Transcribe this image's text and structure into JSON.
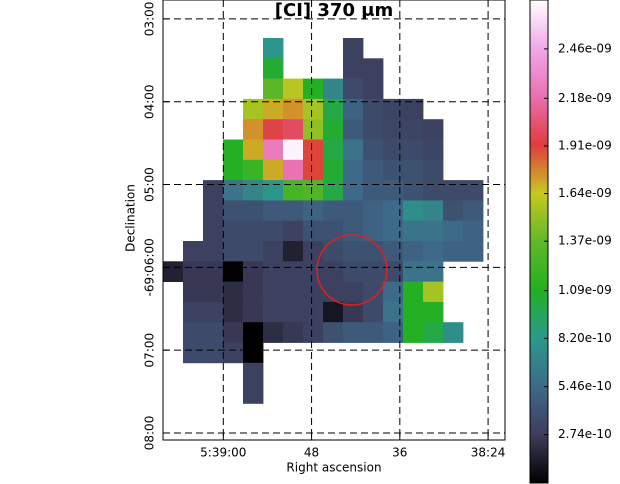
{
  "chart_data": {
    "type": "heatmap",
    "title": "[CI] 370 μm",
    "x_label": "Right ascension",
    "y_label": "Declination",
    "xlim": [
      19148.2,
      19101.7
    ],
    "xticks": [
      {
        "value": 19140,
        "label": "5:39:00"
      },
      {
        "value": 19128,
        "label": "48"
      },
      {
        "value": 19116,
        "label": "36"
      },
      {
        "value": 19104,
        "label": "38:24"
      }
    ],
    "ylim": [
      -248566.3,
      -248885.1
    ],
    "yticks": [
      {
        "value": -248580,
        "label": "03:00"
      },
      {
        "value": -248640,
        "label": "04:00"
      },
      {
        "value": -248700,
        "label": "05:00"
      },
      {
        "value": -248760,
        "label": "-69:06:00"
      },
      {
        "value": -248820,
        "label": "07:00"
      },
      {
        "value": -248880,
        "label": "08:00"
      }
    ],
    "grid": true,
    "clim": [
      0,
      2.737e-09
    ],
    "cticks": [
      {
        "value": 2.74e-10,
        "label": "2.74e-10"
      },
      {
        "value": 5.46e-10,
        "label": "5.46e-10"
      },
      {
        "value": 8.2e-10,
        "label": "8.20e-10"
      },
      {
        "value": 1.09e-09,
        "label": "1.09e-09"
      },
      {
        "value": 1.37e-09,
        "label": "1.37e-09"
      },
      {
        "value": 1.64e-09,
        "label": "1.64e-09"
      },
      {
        "value": 1.91e-09,
        "label": "1.91e-09"
      },
      {
        "value": 2.18e-09,
        "label": "2.18e-09"
      },
      {
        "value": 2.46e-09,
        "label": "2.46e-09"
      }
    ],
    "colormap": [
      "#000000",
      "#3d3d5c",
      "#3e6a8a",
      "#2a9a8a",
      "#22b022",
      "#60b828",
      "#c8c820",
      "#e03c3c",
      "#e870b0",
      "#f0a8e8",
      "#ffffff"
    ],
    "z": [
      [
        null,
        null,
        null,
        null,
        null,
        8e-10,
        null,
        null,
        null,
        3e-10,
        null,
        null,
        null,
        null,
        null,
        null
      ],
      [
        null,
        null,
        null,
        null,
        null,
        1.05e-09,
        null,
        null,
        null,
        3e-10,
        3e-10,
        null,
        null,
        null,
        null,
        null
      ],
      [
        null,
        null,
        null,
        null,
        null,
        1.35e-09,
        1.6e-09,
        1.1e-09,
        7e-10,
        3.5e-10,
        3e-10,
        null,
        null,
        null,
        null,
        null
      ],
      [
        null,
        null,
        null,
        null,
        1.55e-09,
        1.7e-09,
        1.75e-09,
        1.55e-09,
        1e-09,
        5e-10,
        3.5e-10,
        3.2e-10,
        3e-10,
        null,
        null,
        null
      ],
      [
        null,
        null,
        null,
        null,
        1.75e-09,
        1.95e-09,
        2e-09,
        1.5e-09,
        1.05e-09,
        4.5e-10,
        3.5e-10,
        3.3e-10,
        3.2e-10,
        3e-10,
        null,
        null
      ],
      [
        null,
        null,
        null,
        1.1e-09,
        1.7e-09,
        2.25e-09,
        2.7e-09,
        1.9e-09,
        1e-09,
        6e-10,
        4e-10,
        3.5e-10,
        3.5e-10,
        3.2e-10,
        null,
        null
      ],
      [
        null,
        null,
        null,
        1.1e-09,
        1.2e-09,
        1.7e-09,
        2.2e-09,
        1.9e-09,
        1.05e-09,
        5.5e-10,
        4.5e-10,
        4e-10,
        4e-10,
        3.5e-10,
        null,
        null
      ],
      [
        null,
        null,
        3e-10,
        6e-10,
        7e-10,
        8e-10,
        1.25e-09,
        1.3e-09,
        1e-09,
        5.5e-10,
        4.5e-10,
        4.5e-10,
        4e-10,
        3.5e-10,
        3.5e-10,
        3.5e-10
      ],
      [
        null,
        null,
        3e-10,
        4e-10,
        4e-10,
        4.5e-10,
        4.5e-10,
        5e-10,
        4.5e-10,
        4.5e-10,
        5e-10,
        5.5e-10,
        7.5e-10,
        7e-10,
        4e-10,
        4.5e-10
      ],
      [
        null,
        null,
        3e-10,
        3.5e-10,
        3.5e-10,
        3.5e-10,
        3e-10,
        4e-10,
        4e-10,
        4.5e-10,
        5e-10,
        5.5e-10,
        6e-10,
        6e-10,
        5.5e-10,
        5e-10
      ],
      [
        null,
        3e-10,
        3e-10,
        3.5e-10,
        3.5e-10,
        3e-10,
        1.5e-10,
        3e-10,
        3.5e-10,
        4e-10,
        4e-10,
        4.5e-10,
        5e-10,
        5.5e-10,
        5e-10,
        5e-10
      ],
      [
        1.5e-10,
        2.5e-10,
        2.5e-10,
        1e-11,
        2.5e-10,
        3e-10,
        3e-10,
        3e-10,
        3e-10,
        3.5e-10,
        3.5e-10,
        3.5e-10,
        6e-10,
        6e-10,
        null,
        null
      ],
      [
        null,
        2.5e-10,
        2.5e-10,
        2e-10,
        2.5e-10,
        3e-10,
        3e-10,
        3e-10,
        3e-10,
        3e-10,
        3.5e-10,
        5.5e-10,
        1.1e-09,
        1.55e-09,
        null,
        null
      ],
      [
        null,
        3e-10,
        3e-10,
        2e-10,
        2.5e-10,
        3e-10,
        3e-10,
        3e-10,
        1e-10,
        2.5e-10,
        3.5e-10,
        6e-10,
        1.1e-09,
        1.1e-09,
        null,
        null
      ],
      [
        null,
        3.5e-10,
        3.5e-10,
        2.5e-10,
        0,
        2e-10,
        2.5e-10,
        3e-10,
        4e-10,
        4.5e-10,
        4.5e-10,
        5e-10,
        1.1e-09,
        1e-09,
        7.5e-10,
        null
      ],
      [
        null,
        3.5e-10,
        3.5e-10,
        3e-10,
        0,
        null,
        null,
        null,
        null,
        null,
        null,
        null,
        null,
        null,
        null,
        null
      ],
      [
        null,
        null,
        null,
        null,
        3e-10,
        null,
        null,
        null,
        null,
        null,
        null,
        null,
        null,
        null,
        null,
        null
      ],
      [
        null,
        null,
        null,
        null,
        3e-10,
        null,
        null,
        null,
        null,
        null,
        null,
        null,
        null,
        null,
        null,
        null
      ]
    ]
  }
}
